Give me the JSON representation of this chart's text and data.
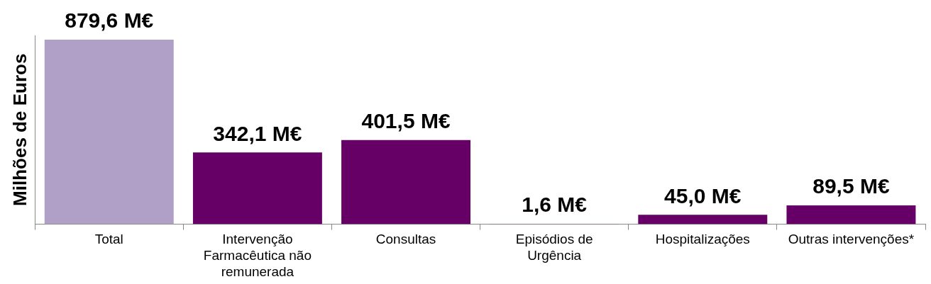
{
  "chart_data": {
    "type": "bar",
    "ylabel": "Milhões de Euros",
    "categories": [
      "Total",
      "Intervenção Farmacêutica não remunerada",
      "Consultas",
      "Episódios de Urgência",
      "Hospitalizações",
      "Outras intervenções*"
    ],
    "values": [
      879.6,
      342.1,
      401.5,
      1.6,
      45.0,
      89.5
    ],
    "colors": [
      "#b09fc7",
      "#660066",
      "#660066",
      "#660066",
      "#660066",
      "#660066"
    ],
    "value_labels": [
      "879,6 M€",
      "342,1 M€",
      "401,5 M€",
      "1,6 M€",
      "45,0 M€",
      "89,5 M€"
    ],
    "grid": false,
    "legend": false
  }
}
